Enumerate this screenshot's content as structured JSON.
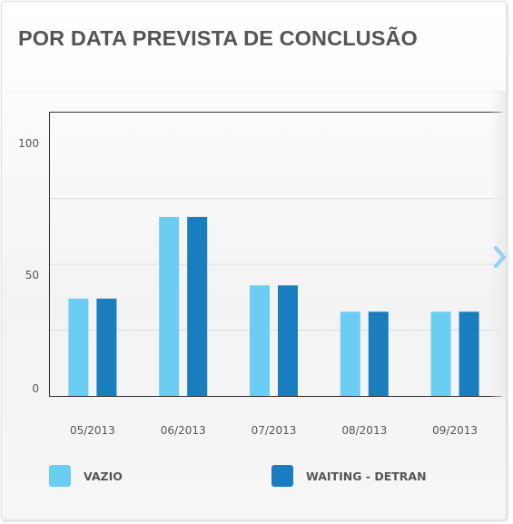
{
  "widget": {
    "title": "POR DATA PREVISTA DE CONCLUSÃO"
  },
  "colors": {
    "series_light": "#6ccdf2",
    "series_dark": "#1a7dbd",
    "axis": "#333333",
    "grid": "#dddddd",
    "arrow": "#8fd2f2"
  },
  "icons": {
    "next": "chevron-right-icon"
  },
  "chart_data": {
    "type": "bar",
    "title": "POR DATA PREVISTA DE CONCLUSÃO",
    "xlabel": "",
    "ylabel": "",
    "categories": [
      "05/2013",
      "06/2013",
      "07/2013",
      "08/2013",
      "09/2013"
    ],
    "series": [
      {
        "name": "VAZIO",
        "values": [
          37,
          68,
          42,
          32,
          32
        ]
      },
      {
        "name": "WAITING - DETRAN",
        "values": [
          37,
          68,
          42,
          32,
          32
        ]
      }
    ],
    "ylim": [
      0,
      108
    ],
    "yticks": [
      0,
      50,
      100
    ],
    "yticks_labels": [
      "0",
      "50",
      "100"
    ],
    "gridlines": [
      25,
      50,
      75
    ],
    "grid": true,
    "legend": "bottom"
  }
}
